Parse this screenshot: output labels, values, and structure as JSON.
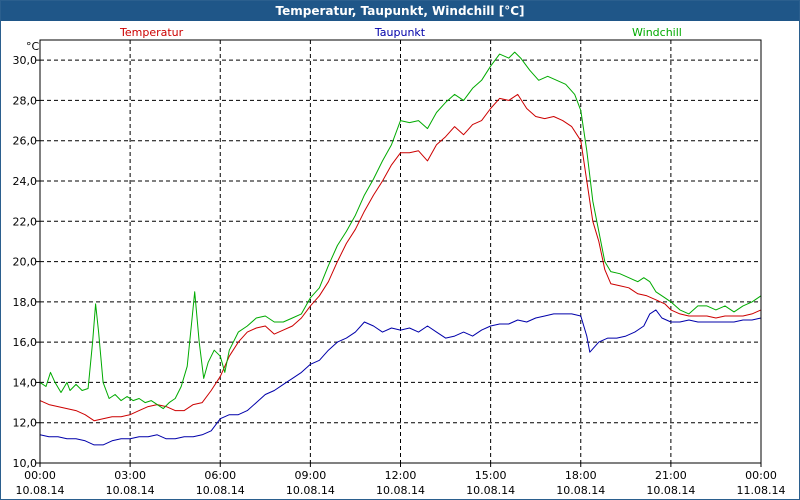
{
  "window": {
    "title": "Temperatur, Taupunkt, Windchill [°C]"
  },
  "chart_data": {
    "type": "line",
    "unit_label": "°C",
    "ylim": [
      10,
      31
    ],
    "y_ticks": [
      {
        "value": 10,
        "label": "10,0"
      },
      {
        "value": 12,
        "label": "12,0"
      },
      {
        "value": 14,
        "label": "14,0"
      },
      {
        "value": 16,
        "label": "16,0"
      },
      {
        "value": 18,
        "label": "18,0"
      },
      {
        "value": 20,
        "label": "20,0"
      },
      {
        "value": 22,
        "label": "22,0"
      },
      {
        "value": 24,
        "label": "24,0"
      },
      {
        "value": 26,
        "label": "26,0"
      },
      {
        "value": 28,
        "label": "28,0"
      },
      {
        "value": 30,
        "label": "30,0"
      }
    ],
    "xlim": [
      0,
      24
    ],
    "x_ticks": [
      {
        "value": 0,
        "time": "00:00",
        "date": "10.08.14"
      },
      {
        "value": 3,
        "time": "03:00",
        "date": "10.08.14"
      },
      {
        "value": 6,
        "time": "06:00",
        "date": "10.08.14"
      },
      {
        "value": 9,
        "time": "09:00",
        "date": "10.08.14"
      },
      {
        "value": 12,
        "time": "12:00",
        "date": "10.08.14"
      },
      {
        "value": 15,
        "time": "15:00",
        "date": "10.08.14"
      },
      {
        "value": 18,
        "time": "18:00",
        "date": "10.08.14"
      },
      {
        "value": 21,
        "time": "21:00",
        "date": "10.08.14"
      },
      {
        "value": 24,
        "time": "00:00",
        "date": "11.08.14"
      }
    ],
    "grid": true,
    "legend_position": "top",
    "series": [
      {
        "name": "Temperatur",
        "color": "#cc0000",
        "points": [
          [
            0,
            13.1
          ],
          [
            0.3,
            12.9
          ],
          [
            0.6,
            12.8
          ],
          [
            0.9,
            12.7
          ],
          [
            1.2,
            12.6
          ],
          [
            1.5,
            12.4
          ],
          [
            1.8,
            12.1
          ],
          [
            2.1,
            12.2
          ],
          [
            2.4,
            12.3
          ],
          [
            2.7,
            12.3
          ],
          [
            3.0,
            12.4
          ],
          [
            3.3,
            12.6
          ],
          [
            3.6,
            12.8
          ],
          [
            3.9,
            12.9
          ],
          [
            4.2,
            12.8
          ],
          [
            4.5,
            12.6
          ],
          [
            4.8,
            12.6
          ],
          [
            5.1,
            12.9
          ],
          [
            5.4,
            13.0
          ],
          [
            5.7,
            13.6
          ],
          [
            6.0,
            14.3
          ],
          [
            6.3,
            15.3
          ],
          [
            6.6,
            16.0
          ],
          [
            6.9,
            16.5
          ],
          [
            7.2,
            16.7
          ],
          [
            7.5,
            16.8
          ],
          [
            7.8,
            16.4
          ],
          [
            8.1,
            16.6
          ],
          [
            8.4,
            16.8
          ],
          [
            8.7,
            17.2
          ],
          [
            9.0,
            17.8
          ],
          [
            9.3,
            18.3
          ],
          [
            9.6,
            19.0
          ],
          [
            9.9,
            20.0
          ],
          [
            10.2,
            20.9
          ],
          [
            10.5,
            21.6
          ],
          [
            10.8,
            22.5
          ],
          [
            11.1,
            23.3
          ],
          [
            11.4,
            24.0
          ],
          [
            11.7,
            24.8
          ],
          [
            12.0,
            25.4
          ],
          [
            12.3,
            25.4
          ],
          [
            12.6,
            25.5
          ],
          [
            12.9,
            25.0
          ],
          [
            13.2,
            25.8
          ],
          [
            13.5,
            26.2
          ],
          [
            13.8,
            26.7
          ],
          [
            14.1,
            26.3
          ],
          [
            14.4,
            26.8
          ],
          [
            14.7,
            27.0
          ],
          [
            15.0,
            27.6
          ],
          [
            15.3,
            28.1
          ],
          [
            15.6,
            28.0
          ],
          [
            15.9,
            28.3
          ],
          [
            16.2,
            27.6
          ],
          [
            16.5,
            27.2
          ],
          [
            16.8,
            27.1
          ],
          [
            17.1,
            27.2
          ],
          [
            17.4,
            27.0
          ],
          [
            17.7,
            26.7
          ],
          [
            18.0,
            26.0
          ],
          [
            18.2,
            24.0
          ],
          [
            18.4,
            22.0
          ],
          [
            18.6,
            21.0
          ],
          [
            18.8,
            19.6
          ],
          [
            19.0,
            18.9
          ],
          [
            19.3,
            18.8
          ],
          [
            19.6,
            18.7
          ],
          [
            19.9,
            18.4
          ],
          [
            20.2,
            18.3
          ],
          [
            20.5,
            18.1
          ],
          [
            20.8,
            17.9
          ],
          [
            21.0,
            17.6
          ],
          [
            21.3,
            17.4
          ],
          [
            21.6,
            17.3
          ],
          [
            21.9,
            17.3
          ],
          [
            22.2,
            17.3
          ],
          [
            22.5,
            17.2
          ],
          [
            22.8,
            17.3
          ],
          [
            23.1,
            17.3
          ],
          [
            23.4,
            17.3
          ],
          [
            23.7,
            17.4
          ],
          [
            24.0,
            17.6
          ]
        ]
      },
      {
        "name": "Taupunkt",
        "color": "#0000aa",
        "points": [
          [
            0,
            11.4
          ],
          [
            0.3,
            11.3
          ],
          [
            0.6,
            11.3
          ],
          [
            0.9,
            11.2
          ],
          [
            1.2,
            11.2
          ],
          [
            1.5,
            11.1
          ],
          [
            1.8,
            10.9
          ],
          [
            2.1,
            10.9
          ],
          [
            2.4,
            11.1
          ],
          [
            2.7,
            11.2
          ],
          [
            3.0,
            11.2
          ],
          [
            3.3,
            11.3
          ],
          [
            3.6,
            11.3
          ],
          [
            3.9,
            11.4
          ],
          [
            4.2,
            11.2
          ],
          [
            4.5,
            11.2
          ],
          [
            4.8,
            11.3
          ],
          [
            5.1,
            11.3
          ],
          [
            5.4,
            11.4
          ],
          [
            5.7,
            11.6
          ],
          [
            6.0,
            12.2
          ],
          [
            6.3,
            12.4
          ],
          [
            6.6,
            12.4
          ],
          [
            6.9,
            12.6
          ],
          [
            7.2,
            13.0
          ],
          [
            7.5,
            13.4
          ],
          [
            7.8,
            13.6
          ],
          [
            8.1,
            13.9
          ],
          [
            8.4,
            14.2
          ],
          [
            8.7,
            14.5
          ],
          [
            9.0,
            14.9
          ],
          [
            9.3,
            15.1
          ],
          [
            9.6,
            15.6
          ],
          [
            9.9,
            16.0
          ],
          [
            10.2,
            16.2
          ],
          [
            10.5,
            16.5
          ],
          [
            10.8,
            17.0
          ],
          [
            11.1,
            16.8
          ],
          [
            11.4,
            16.5
          ],
          [
            11.7,
            16.7
          ],
          [
            12.0,
            16.6
          ],
          [
            12.3,
            16.7
          ],
          [
            12.6,
            16.5
          ],
          [
            12.9,
            16.8
          ],
          [
            13.2,
            16.5
          ],
          [
            13.5,
            16.2
          ],
          [
            13.8,
            16.3
          ],
          [
            14.1,
            16.5
          ],
          [
            14.4,
            16.3
          ],
          [
            14.7,
            16.6
          ],
          [
            15.0,
            16.8
          ],
          [
            15.3,
            16.9
          ],
          [
            15.6,
            16.9
          ],
          [
            15.9,
            17.1
          ],
          [
            16.2,
            17.0
          ],
          [
            16.5,
            17.2
          ],
          [
            16.8,
            17.3
          ],
          [
            17.1,
            17.4
          ],
          [
            17.4,
            17.4
          ],
          [
            17.7,
            17.4
          ],
          [
            18.0,
            17.3
          ],
          [
            18.2,
            16.3
          ],
          [
            18.3,
            15.5
          ],
          [
            18.6,
            16.0
          ],
          [
            18.9,
            16.2
          ],
          [
            19.2,
            16.2
          ],
          [
            19.5,
            16.3
          ],
          [
            19.8,
            16.5
          ],
          [
            20.1,
            16.8
          ],
          [
            20.3,
            17.4
          ],
          [
            20.5,
            17.6
          ],
          [
            20.7,
            17.2
          ],
          [
            21.0,
            17.0
          ],
          [
            21.3,
            17.0
          ],
          [
            21.6,
            17.1
          ],
          [
            21.9,
            17.0
          ],
          [
            22.2,
            17.0
          ],
          [
            22.5,
            17.0
          ],
          [
            22.8,
            17.0
          ],
          [
            23.1,
            17.0
          ],
          [
            23.4,
            17.1
          ],
          [
            23.7,
            17.1
          ],
          [
            24.0,
            17.2
          ]
        ]
      },
      {
        "name": "Windchill",
        "color": "#00aa00",
        "points": [
          [
            0,
            14.0
          ],
          [
            0.2,
            13.8
          ],
          [
            0.35,
            14.5
          ],
          [
            0.5,
            14.0
          ],
          [
            0.7,
            13.5
          ],
          [
            0.9,
            14.0
          ],
          [
            1.0,
            13.6
          ],
          [
            1.2,
            13.9
          ],
          [
            1.4,
            13.6
          ],
          [
            1.6,
            13.7
          ],
          [
            1.75,
            16.0
          ],
          [
            1.85,
            17.9
          ],
          [
            1.95,
            16.5
          ],
          [
            2.1,
            14.0
          ],
          [
            2.3,
            13.2
          ],
          [
            2.5,
            13.4
          ],
          [
            2.7,
            13.1
          ],
          [
            2.9,
            13.3
          ],
          [
            3.1,
            13.1
          ],
          [
            3.3,
            13.2
          ],
          [
            3.5,
            13.0
          ],
          [
            3.7,
            13.1
          ],
          [
            3.9,
            12.9
          ],
          [
            4.1,
            12.7
          ],
          [
            4.3,
            13.0
          ],
          [
            4.5,
            13.2
          ],
          [
            4.7,
            13.8
          ],
          [
            4.9,
            14.8
          ],
          [
            5.05,
            17.0
          ],
          [
            5.15,
            18.5
          ],
          [
            5.3,
            16.0
          ],
          [
            5.45,
            14.2
          ],
          [
            5.6,
            15.0
          ],
          [
            5.8,
            15.6
          ],
          [
            6.0,
            15.3
          ],
          [
            6.15,
            14.5
          ],
          [
            6.3,
            15.6
          ],
          [
            6.6,
            16.5
          ],
          [
            6.9,
            16.8
          ],
          [
            7.2,
            17.2
          ],
          [
            7.5,
            17.3
          ],
          [
            7.8,
            17.0
          ],
          [
            8.1,
            17.0
          ],
          [
            8.4,
            17.2
          ],
          [
            8.7,
            17.4
          ],
          [
            9.0,
            18.2
          ],
          [
            9.3,
            18.7
          ],
          [
            9.6,
            19.8
          ],
          [
            9.9,
            20.8
          ],
          [
            10.2,
            21.5
          ],
          [
            10.5,
            22.3
          ],
          [
            10.8,
            23.3
          ],
          [
            11.1,
            24.1
          ],
          [
            11.4,
            25.0
          ],
          [
            11.7,
            25.8
          ],
          [
            12.0,
            27.0
          ],
          [
            12.3,
            26.9
          ],
          [
            12.6,
            27.0
          ],
          [
            12.9,
            26.6
          ],
          [
            13.2,
            27.4
          ],
          [
            13.5,
            27.9
          ],
          [
            13.8,
            28.3
          ],
          [
            14.1,
            28.0
          ],
          [
            14.4,
            28.6
          ],
          [
            14.7,
            29.0
          ],
          [
            15.0,
            29.7
          ],
          [
            15.3,
            30.3
          ],
          [
            15.6,
            30.1
          ],
          [
            15.8,
            30.4
          ],
          [
            16.0,
            30.1
          ],
          [
            16.3,
            29.5
          ],
          [
            16.6,
            29.0
          ],
          [
            16.9,
            29.2
          ],
          [
            17.2,
            29.0
          ],
          [
            17.5,
            28.8
          ],
          [
            17.8,
            28.3
          ],
          [
            18.0,
            27.5
          ],
          [
            18.2,
            25.5
          ],
          [
            18.4,
            23.0
          ],
          [
            18.6,
            21.5
          ],
          [
            18.8,
            20.0
          ],
          [
            19.0,
            19.5
          ],
          [
            19.3,
            19.4
          ],
          [
            19.6,
            19.2
          ],
          [
            19.9,
            19.0
          ],
          [
            20.1,
            19.2
          ],
          [
            20.3,
            19.0
          ],
          [
            20.5,
            18.5
          ],
          [
            20.8,
            18.2
          ],
          [
            21.0,
            18.0
          ],
          [
            21.3,
            17.6
          ],
          [
            21.6,
            17.4
          ],
          [
            21.9,
            17.8
          ],
          [
            22.2,
            17.8
          ],
          [
            22.5,
            17.6
          ],
          [
            22.8,
            17.8
          ],
          [
            23.1,
            17.5
          ],
          [
            23.4,
            17.8
          ],
          [
            23.7,
            18.0
          ],
          [
            24.0,
            18.3
          ]
        ]
      }
    ]
  }
}
